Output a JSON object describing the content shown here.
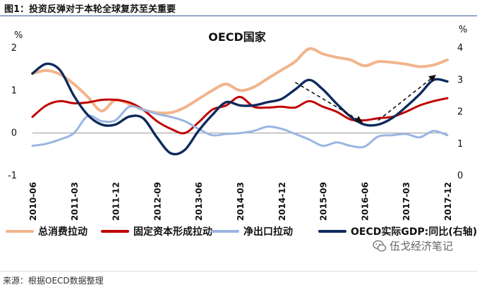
{
  "figure": {
    "title": "图1：投资反弹对于本轮全球复苏至关重要",
    "source": "来源：根据OECD数据整理",
    "watermark": "伍戈经济笔记"
  },
  "chart_data": {
    "type": "line",
    "title": "OECD国家",
    "y_left_unit": "%",
    "y_right_unit": "%",
    "ylim_left": [
      -1,
      2
    ],
    "ylim_right": [
      0,
      4
    ],
    "yticks_left": [
      "2",
      "1",
      "0",
      "-1"
    ],
    "yticks_right": [
      "4",
      "3",
      "2",
      "1",
      "0"
    ],
    "x_ticks": [
      "2010-06",
      "2011-03",
      "2011-12",
      "2012-09",
      "2013-06",
      "2014-03",
      "2014-12",
      "2015-09",
      "2016-06",
      "2017-03",
      "2017-12"
    ],
    "x": [
      "2010-06",
      "2010-09",
      "2010-12",
      "2011-03",
      "2011-06",
      "2011-09",
      "2011-12",
      "2012-03",
      "2012-06",
      "2012-09",
      "2012-12",
      "2013-03",
      "2013-06",
      "2013-09",
      "2013-12",
      "2014-03",
      "2014-06",
      "2014-09",
      "2014-12",
      "2015-03",
      "2015-06",
      "2015-09",
      "2015-12",
      "2016-03",
      "2016-06",
      "2016-09",
      "2016-12",
      "2017-03",
      "2017-06",
      "2017-09",
      "2017-12"
    ],
    "series": [
      {
        "name": "总消费拉动",
        "axis": "left",
        "color": "#F2B48C",
        "values": [
          1.4,
          1.47,
          1.38,
          1.15,
          0.85,
          0.52,
          0.78,
          0.68,
          0.55,
          0.48,
          0.48,
          0.6,
          0.8,
          1.0,
          1.15,
          1.0,
          1.08,
          1.28,
          1.48,
          1.68,
          1.98,
          1.86,
          1.78,
          1.72,
          1.58,
          1.68,
          1.66,
          1.62,
          1.56,
          1.6,
          1.72
        ]
      },
      {
        "name": "固定资本形成拉动",
        "axis": "left",
        "color": "#C00000",
        "values": [
          0.38,
          0.65,
          0.75,
          0.7,
          0.72,
          0.78,
          0.78,
          0.72,
          0.55,
          0.28,
          0.1,
          0.0,
          0.25,
          0.55,
          0.65,
          0.85,
          0.62,
          0.6,
          0.62,
          0.6,
          0.75,
          0.62,
          0.5,
          0.32,
          0.3,
          0.35,
          0.38,
          0.5,
          0.65,
          0.75,
          0.82
        ]
      },
      {
        "name": "净出口拉动",
        "axis": "left",
        "color": "#9AB5E2",
        "values": [
          -0.3,
          -0.25,
          -0.15,
          0.0,
          0.4,
          0.28,
          0.3,
          0.62,
          0.55,
          0.45,
          0.38,
          0.28,
          0.1,
          -0.05,
          -0.02,
          0.0,
          0.05,
          0.15,
          0.1,
          -0.02,
          -0.15,
          -0.3,
          -0.22,
          -0.3,
          -0.32,
          -0.08,
          -0.05,
          -0.02,
          -0.1,
          0.05,
          -0.05
        ]
      },
      {
        "name": "OECD实际GDP:同比(右轴)",
        "axis": "right",
        "color": "#0E2A5C",
        "values": [
          3.2,
          3.5,
          3.3,
          2.5,
          1.9,
          1.6,
          1.6,
          1.85,
          1.8,
          1.2,
          0.7,
          0.8,
          1.4,
          1.9,
          2.3,
          2.2,
          2.2,
          2.3,
          2.4,
          2.7,
          3.0,
          2.7,
          2.25,
          1.85,
          1.6,
          1.6,
          1.8,
          2.15,
          2.55,
          3.0,
          2.95
        ]
      }
    ],
    "annotations": [
      "dashed-arrow-down",
      "dashed-arrow-up"
    ],
    "grid": false,
    "legend_position": "bottom"
  }
}
